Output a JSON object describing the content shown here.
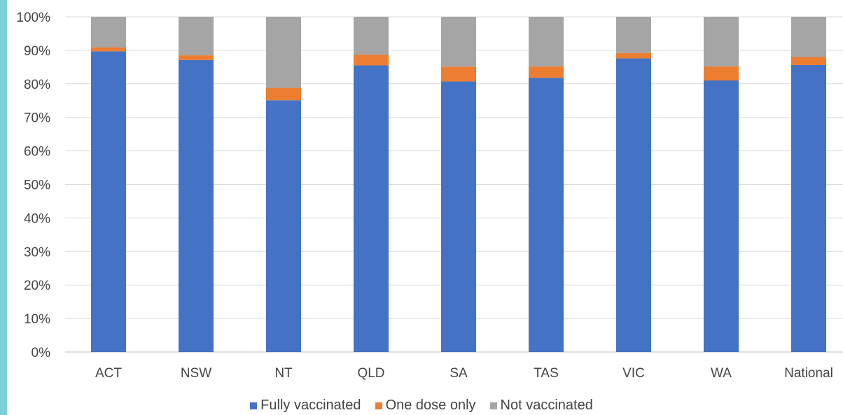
{
  "chart_data": {
    "type": "bar",
    "stacked": true,
    "categories": [
      "ACT",
      "NSW",
      "NT",
      "QLD",
      "SA",
      "TAS",
      "VIC",
      "WA",
      "National"
    ],
    "series": [
      {
        "name": "Fully vaccinated",
        "color": "#4472c4",
        "values": [
          89.7,
          87.1,
          75.1,
          85.5,
          80.7,
          81.8,
          87.6,
          81.0,
          85.6
        ]
      },
      {
        "name": "One dose only",
        "color": "#ed7d31",
        "values": [
          1.2,
          1.4,
          3.7,
          3.2,
          4.4,
          3.4,
          1.6,
          4.2,
          2.4
        ]
      },
      {
        "name": "Not vaccinated",
        "color": "#a5a5a5",
        "values": [
          9.1,
          11.5,
          21.2,
          11.3,
          14.9,
          14.8,
          10.8,
          14.8,
          12.0
        ]
      }
    ],
    "yticks": [
      "0%",
      "10%",
      "20%",
      "30%",
      "40%",
      "50%",
      "60%",
      "70%",
      "80%",
      "90%",
      "100%"
    ],
    "ylim": [
      0,
      100
    ],
    "grid": true,
    "legend": "bottom"
  }
}
